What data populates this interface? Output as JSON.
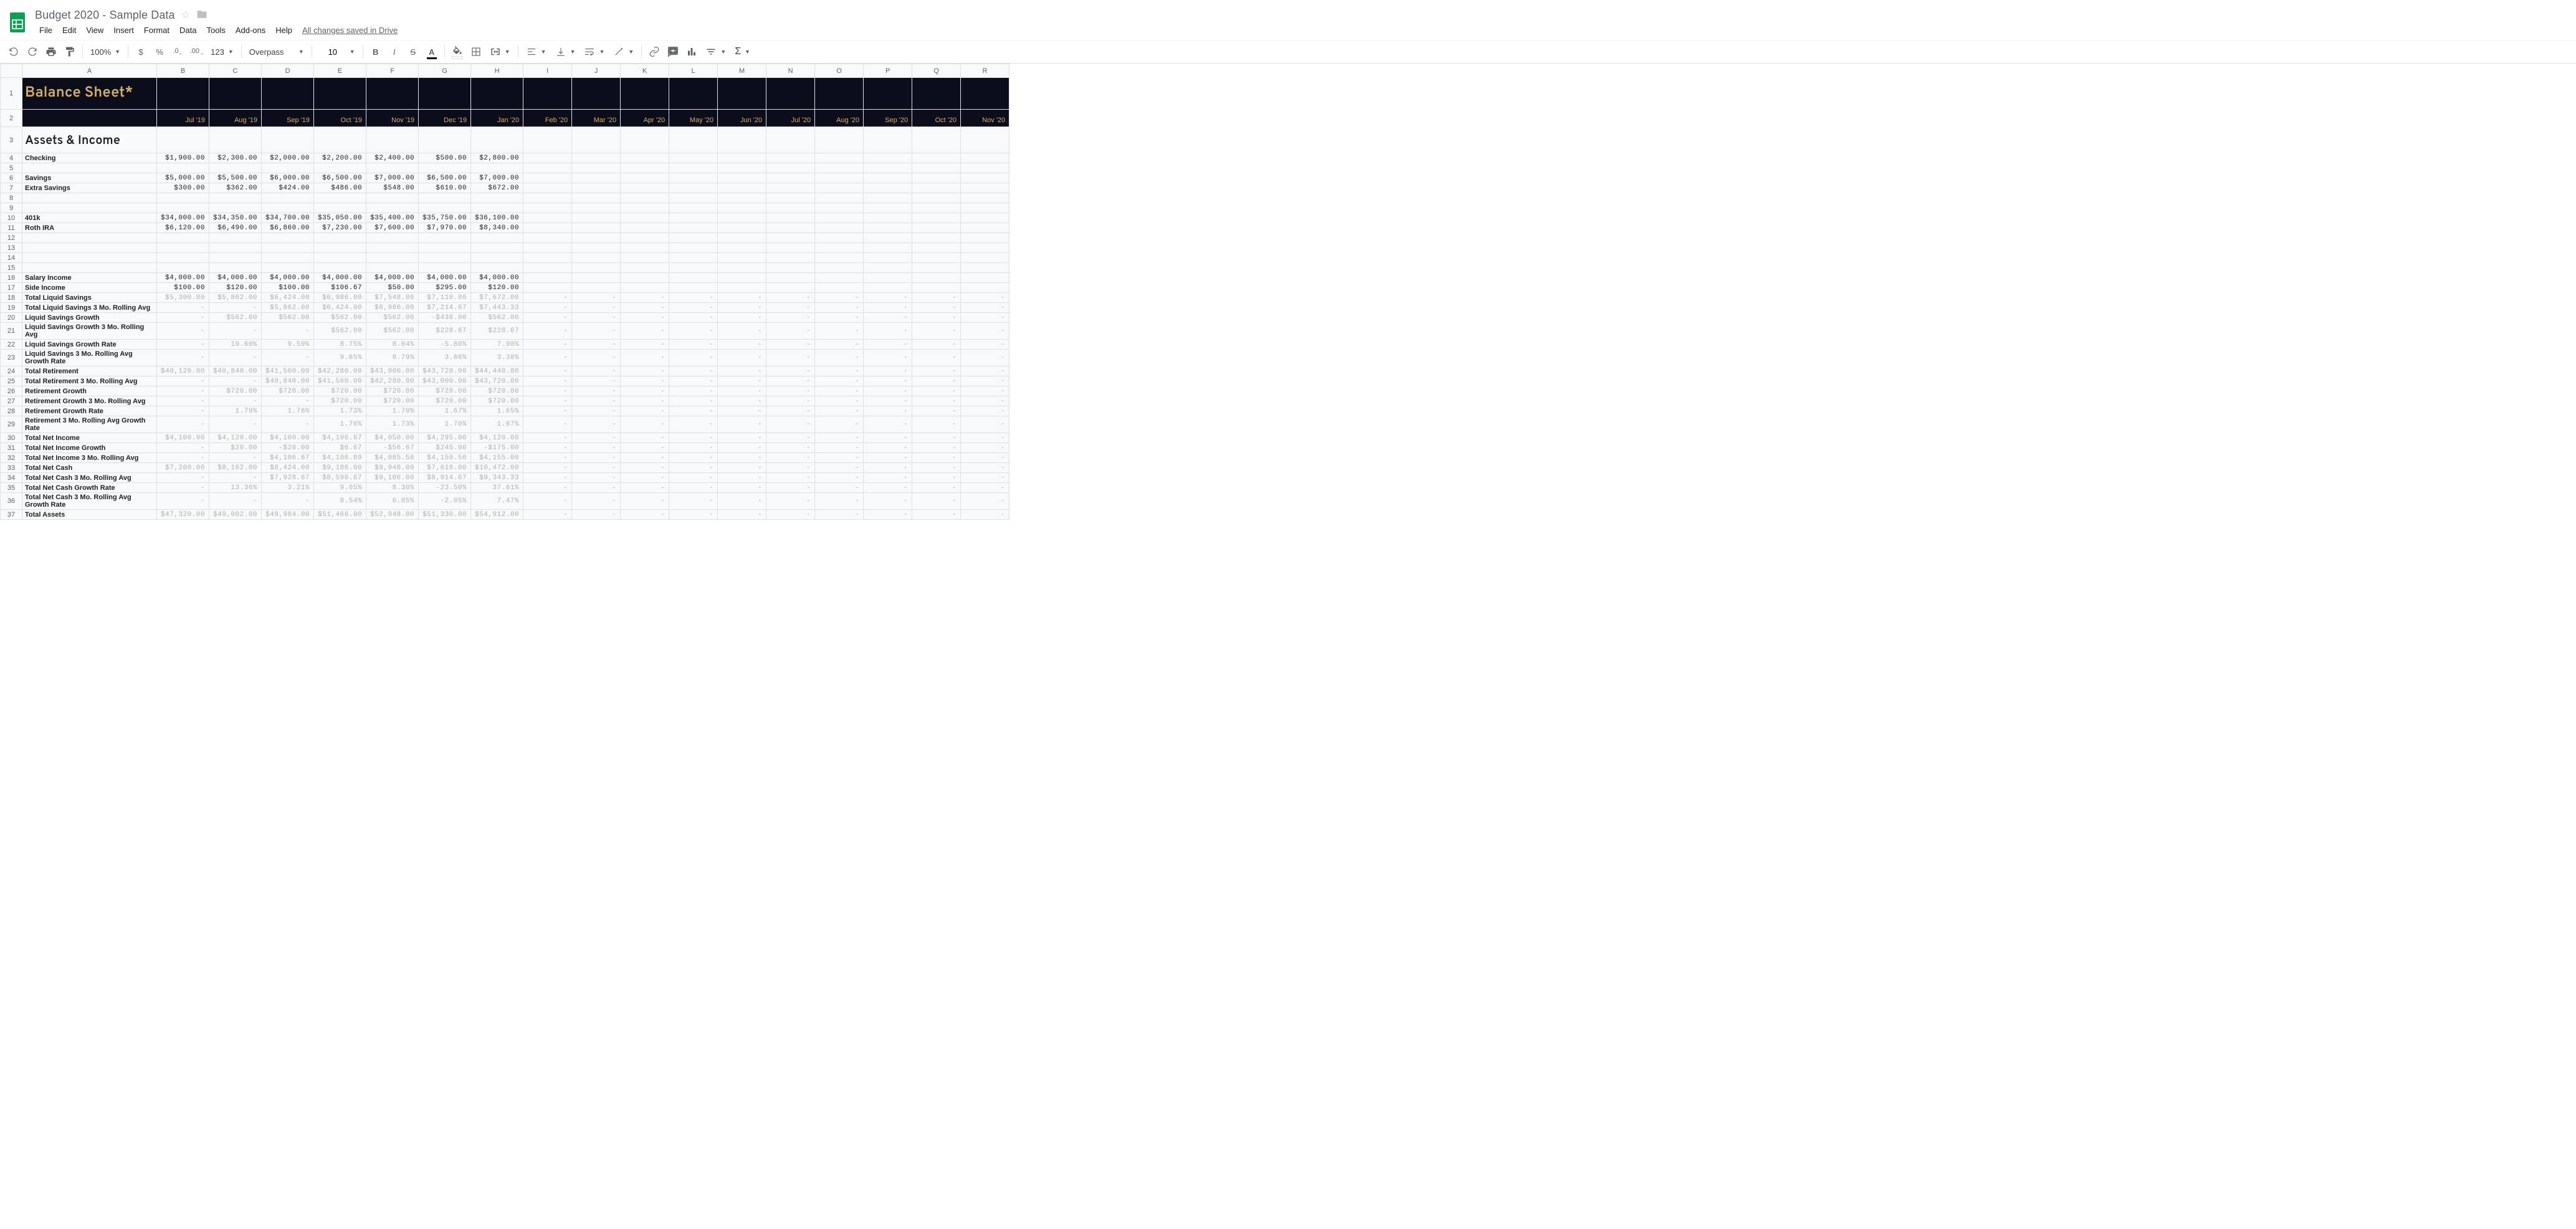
{
  "doc": {
    "title": "Budget 2020 - Sample Data",
    "save_status": "All changes saved in Drive"
  },
  "menu": [
    "File",
    "Edit",
    "View",
    "Insert",
    "Format",
    "Data",
    "Tools",
    "Add-ons",
    "Help"
  ],
  "toolbar": {
    "zoom": "100%",
    "font": "Overpass",
    "fontsize": "10",
    "fmt": "123"
  },
  "columns": [
    "A",
    "B",
    "C",
    "D",
    "E",
    "F",
    "G",
    "H",
    "I",
    "J",
    "K",
    "L",
    "M",
    "N",
    "O",
    "P",
    "Q",
    "R"
  ],
  "sheet_title": "Balance Sheet*",
  "months": [
    "Jul '19",
    "Aug '19",
    "Sep '19",
    "Oct '19",
    "Nov '19",
    "Dec '19",
    "Jan '20",
    "Feb '20",
    "Mar '20",
    "Apr '20",
    "May '20",
    "Jun '20",
    "Jul '20",
    "Aug '20",
    "Sep '20",
    "Oct '20",
    "Nov '20"
  ],
  "section1": "Assets & Income",
  "rows": [
    {
      "n": 4,
      "type": "data",
      "label": "Checking",
      "vals": [
        "$1,900.00",
        "$2,300.00",
        "$2,000.00",
        "$2,200.00",
        "$2,400.00",
        "$500.00",
        "$2,800.00"
      ]
    },
    {
      "n": 5,
      "type": "blank"
    },
    {
      "n": 6,
      "type": "data",
      "label": "Savings",
      "vals": [
        "$5,000.00",
        "$5,500.00",
        "$6,000.00",
        "$6,500.00",
        "$7,000.00",
        "$6,500.00",
        "$7,000.00"
      ]
    },
    {
      "n": 7,
      "type": "data",
      "label": "Extra Savings",
      "vals": [
        "$300.00",
        "$362.00",
        "$424.00",
        "$486.00",
        "$548.00",
        "$610.00",
        "$672.00"
      ]
    },
    {
      "n": 8,
      "type": "blank"
    },
    {
      "n": 9,
      "type": "blank"
    },
    {
      "n": 10,
      "type": "data",
      "label": "401k",
      "vals": [
        "$34,000.00",
        "$34,350.00",
        "$34,700.00",
        "$35,050.00",
        "$35,400.00",
        "$35,750.00",
        "$36,100.00"
      ]
    },
    {
      "n": 11,
      "type": "data",
      "label": "Roth IRA",
      "vals": [
        "$6,120.00",
        "$6,490.00",
        "$6,860.00",
        "$7,230.00",
        "$7,600.00",
        "$7,970.00",
        "$8,340.00"
      ]
    },
    {
      "n": 12,
      "type": "blank"
    },
    {
      "n": 13,
      "type": "blank"
    },
    {
      "n": 14,
      "type": "blank"
    },
    {
      "n": 15,
      "type": "blank"
    },
    {
      "n": 16,
      "type": "data",
      "label": "Salary Income",
      "vals": [
        "$4,000.00",
        "$4,000.00",
        "$4,000.00",
        "$4,000.00",
        "$4,000.00",
        "$4,000.00",
        "$4,000.00"
      ]
    },
    {
      "n": 17,
      "type": "data",
      "label": "Side Income",
      "vals": [
        "$100.00",
        "$120.00",
        "$100.00",
        "$106.67",
        "$50.00",
        "$295.00",
        "$120.00"
      ]
    },
    {
      "n": 18,
      "type": "calc",
      "label": "Total Liquid Savings",
      "vals": [
        "$5,300.00",
        "$5,862.00",
        "$6,424.00",
        "$6,986.00",
        "$7,548.00",
        "$7,110.00",
        "$7,672.00"
      ],
      "dash": true
    },
    {
      "n": 19,
      "type": "calc",
      "label": "Total Liquid Savings 3 Mo. Rolling Avg",
      "vals": [
        "-",
        "-",
        "$5,862.00",
        "$6,424.00",
        "$6,986.00",
        "$7,214.67",
        "$7,443.33"
      ],
      "dash": true
    },
    {
      "n": 20,
      "type": "calc",
      "label": "Liquid Savings Growth",
      "vals": [
        "-",
        "$562.00",
        "$562.00",
        "$562.00",
        "$562.00",
        "-$438.00",
        "$562.00"
      ],
      "dash": true
    },
    {
      "n": 21,
      "type": "calc",
      "label": "Liquid Savings Growth 3 Mo. Rolling Avg",
      "vals": [
        "-",
        "-",
        "-",
        "$562.00",
        "$562.00",
        "$228.67",
        "$228.67"
      ],
      "dash": true
    },
    {
      "n": 22,
      "type": "calc",
      "label": "Liquid Savings Growth Rate",
      "vals": [
        "-",
        "10.60%",
        "9.59%",
        "8.75%",
        "8.04%",
        "-5.80%",
        "7.90%"
      ],
      "dash": true
    },
    {
      "n": 23,
      "type": "calc",
      "label": "Liquid Savings 3 Mo. Rolling Avg Growth Rate",
      "vals": [
        "-",
        "-",
        "-",
        "9.65%",
        "8.79%",
        "3.66%",
        "3.38%"
      ],
      "dash": true
    },
    {
      "n": 24,
      "type": "calc",
      "label": "Total Retirement",
      "vals": [
        "$40,120.00",
        "$40,840.00",
        "$41,560.00",
        "$42,280.00",
        "$43,000.00",
        "$43,720.00",
        "$44,440.00"
      ],
      "dash": true
    },
    {
      "n": 25,
      "type": "calc",
      "label": "Total Retirement 3 Mo. Rolling Avg",
      "vals": [
        "-",
        "-",
        "$40,840.00",
        "$41,560.00",
        "$42,280.00",
        "$43,000.00",
        "$43,720.00"
      ],
      "dash": true
    },
    {
      "n": 26,
      "type": "calc",
      "label": "Retirement Growth",
      "vals": [
        "-",
        "$720.00",
        "$720.00",
        "$720.00",
        "$720.00",
        "$720.00",
        "$720.00"
      ],
      "dash": true
    },
    {
      "n": 27,
      "type": "calc",
      "label": "Retirement Growth 3 Mo. Rolling Avg",
      "vals": [
        "-",
        "-",
        "-",
        "$720.00",
        "$720.00",
        "$720.00",
        "$720.00"
      ],
      "dash": true
    },
    {
      "n": 28,
      "type": "calc",
      "label": "Retirement Growth Rate",
      "vals": [
        "-",
        "1.79%",
        "1.76%",
        "1.73%",
        "1.70%",
        "1.67%",
        "1.65%"
      ],
      "dash": true
    },
    {
      "n": 29,
      "type": "calc",
      "label": "Retirement 3 Mo. Rolling Avg Growth Rate",
      "vals": [
        "-",
        "-",
        "-",
        "1.76%",
        "1.73%",
        "1.70%",
        "1.67%"
      ],
      "dash": true
    },
    {
      "n": 30,
      "type": "calc",
      "label": "Total Net Income",
      "vals": [
        "$4,100.00",
        "$4,120.00",
        "$4,100.00",
        "$4,106.67",
        "$4,050.00",
        "$4,295.00",
        "$4,120.00"
      ],
      "dash": true
    },
    {
      "n": 31,
      "type": "calc",
      "label": "Total Net Income Growth",
      "vals": [
        "-",
        "$20.00",
        "-$20.00",
        "$6.67",
        "-$56.67",
        "$245.00",
        "-$175.00"
      ],
      "dash": true
    },
    {
      "n": 32,
      "type": "calc",
      "label": "Total Net Income 3 Mo. Rolling Avg",
      "vals": [
        "-",
        "-",
        "$4,106.67",
        "$4,108.89",
        "$4,085.56",
        "$4,150.56",
        "$4,155.00"
      ],
      "dash": true
    },
    {
      "n": 33,
      "type": "calc",
      "label": "Total Net Cash",
      "vals": [
        "$7,200.00",
        "$8,162.00",
        "$8,424.00",
        "$9,186.00",
        "$9,948.00",
        "$7,610.00",
        "$10,472.00"
      ],
      "dash": true
    },
    {
      "n": 34,
      "type": "calc",
      "label": "Total Net Cash 3 Mo. Rolling Avg",
      "vals": [
        "-",
        "-",
        "$7,928.67",
        "$8,590.67",
        "$9,186.00",
        "$8,914.67",
        "$9,343.33"
      ],
      "dash": true
    },
    {
      "n": 35,
      "type": "calc",
      "label": "Total Net Cash Growth Rate",
      "vals": [
        "-",
        "13.36%",
        "3.21%",
        "9.05%",
        "8.30%",
        "-23.50%",
        "37.61%"
      ],
      "dash": true
    },
    {
      "n": 36,
      "type": "calc",
      "label": "Total Net Cash 3 Mo. Rolling Avg Growth Rate",
      "vals": [
        "-",
        "-",
        "-",
        "8.54%",
        "6.85%",
        "-2.05%",
        "7.47%"
      ],
      "dash": true
    },
    {
      "n": 37,
      "type": "calc",
      "label": "Total Assets",
      "vals": [
        "$47,320.00",
        "$49,002.00",
        "$49,984.00",
        "$51,466.00",
        "$52,948.00",
        "$51,330.00",
        "$54,912.00"
      ],
      "dash": true
    }
  ]
}
